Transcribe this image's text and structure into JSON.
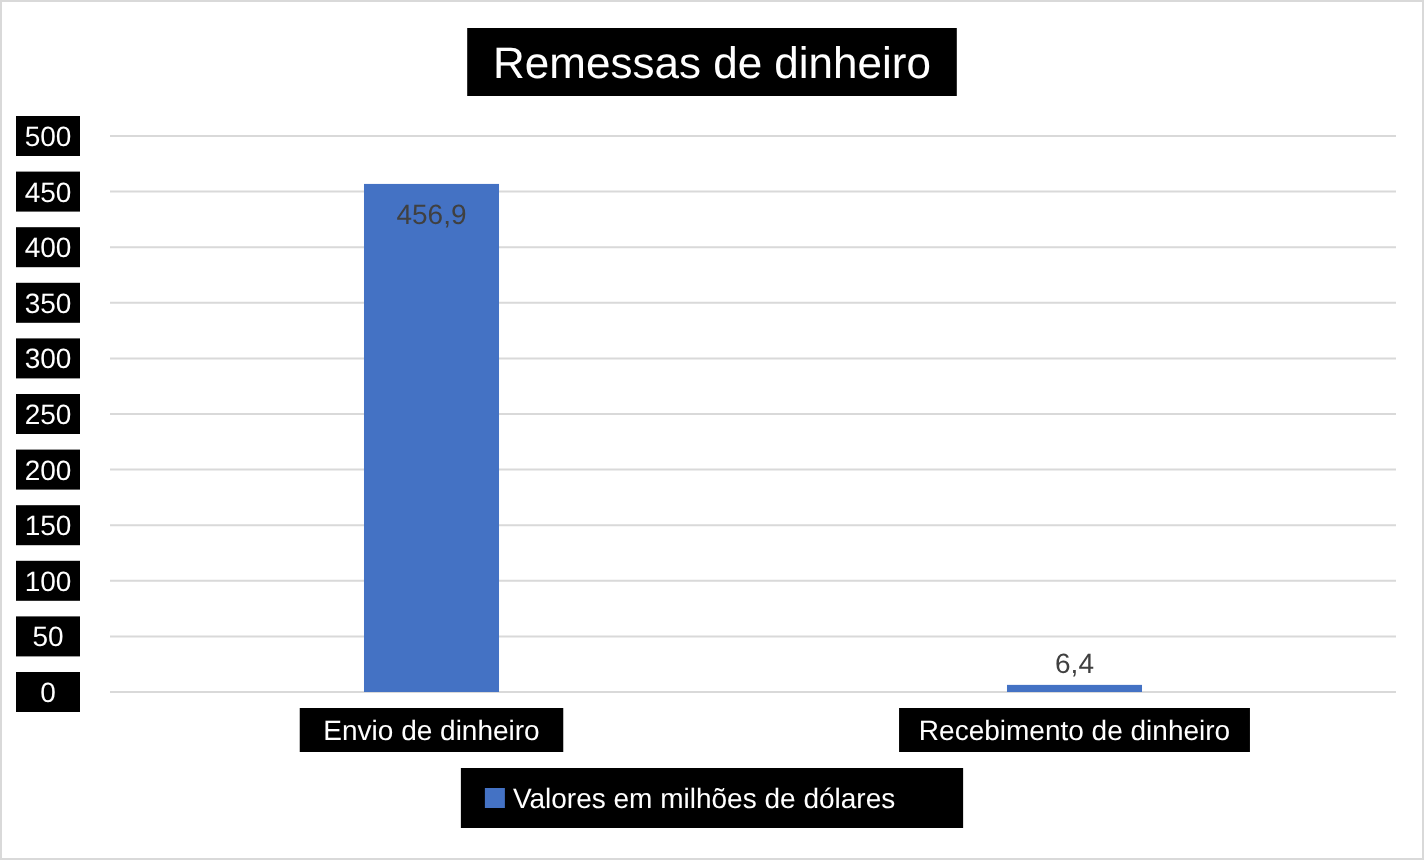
{
  "chart_data": {
    "type": "bar",
    "title": "Remessas de dinheiro",
    "categories": [
      "Envio de dinheiro",
      "Recebimento de dinheiro"
    ],
    "series": [
      {
        "name": "Valores em milhões de dólares",
        "color": "#4472c4",
        "values": [
          456.9,
          6.4
        ],
        "value_labels": [
          "456,9",
          "6,4"
        ]
      }
    ],
    "ylim": [
      0,
      500
    ],
    "yticks": [
      0,
      50,
      100,
      150,
      200,
      250,
      300,
      350,
      400,
      450,
      500
    ],
    "grid": "y",
    "legend": "bottom"
  }
}
